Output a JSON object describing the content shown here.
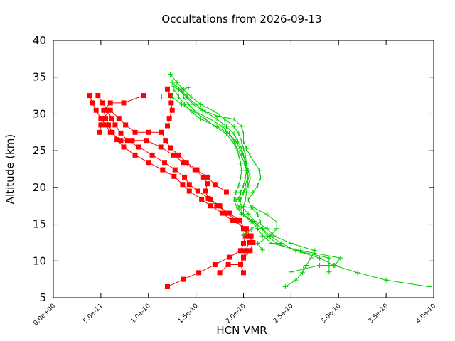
{
  "chart_data": {
    "type": "line",
    "title": "Occultations from 2026-09-13",
    "xlabel": "HCN VMR",
    "ylabel": "Altitude (km)",
    "xlim": [
      0,
      4e-10
    ],
    "ylim": [
      5,
      40
    ],
    "x_ticks": [
      0,
      5e-11,
      1e-10,
      1.5e-10,
      2e-10,
      2.5e-10,
      3e-10,
      3.5e-10,
      4e-10
    ],
    "x_tick_labels": [
      "0.0e+00",
      "5.0e-11",
      "1.0e-10",
      "1.5e-10",
      "2.0e-10",
      "2.5e-10",
      "3.0e-10",
      "3.5e-10",
      "4.0e-10"
    ],
    "y_ticks": [
      5,
      10,
      15,
      20,
      25,
      30,
      35,
      40
    ],
    "y_tick_labels": [
      "5",
      "10",
      "15",
      "20",
      "25",
      "30",
      "35",
      "40"
    ],
    "grid": false,
    "legend": "none",
    "colors": {
      "red_series": "#ff0000",
      "green_series": "#00cc00",
      "axis": "#000000"
    },
    "series": [
      {
        "color": "#ff0000",
        "marker": "square",
        "points": [
          [
            1.2e-10,
            6.5
          ],
          [
            1.37e-10,
            7.5
          ],
          [
            1.53e-10,
            8.4
          ],
          [
            1.7e-10,
            9.5
          ],
          [
            1.85e-10,
            10.5
          ],
          [
            1.97e-10,
            11.4
          ],
          [
            2e-10,
            12.4
          ],
          [
            2.02e-10,
            13.4
          ],
          [
            2.03e-10,
            14.4
          ],
          [
            1.88e-10,
            15.5
          ],
          [
            1.78e-10,
            16.5
          ],
          [
            1.65e-10,
            17.5
          ],
          [
            1.56e-10,
            18.4
          ],
          [
            1.43e-10,
            19.5
          ],
          [
            1.36e-10,
            20.4
          ],
          [
            1.27e-10,
            21.5
          ],
          [
            1.15e-10,
            22.4
          ],
          [
            1e-10,
            23.4
          ],
          [
            8.6e-11,
            24.4
          ],
          [
            7.4e-11,
            25.5
          ],
          [
            6.7e-11,
            26.5
          ],
          [
            6.2e-11,
            27.5
          ],
          [
            5.8e-11,
            28.5
          ],
          [
            5.5e-11,
            29.4
          ],
          [
            5.3e-11,
            30.5
          ],
          [
            6e-11,
            31.5
          ],
          [
            7.4e-11,
            31.5
          ],
          [
            9.5e-11,
            32.5
          ]
        ]
      },
      {
        "color": "#ff0000",
        "marker": "square",
        "points": [
          [
            2e-10,
            8.4
          ],
          [
            1.97e-10,
            9.5
          ],
          [
            2e-10,
            10.4
          ],
          [
            2.02e-10,
            11.4
          ],
          [
            2.06e-10,
            12.5
          ],
          [
            2.08e-10,
            13.4
          ],
          [
            2.01e-10,
            14.4
          ],
          [
            1.96e-10,
            15.5
          ],
          [
            1.85e-10,
            16.5
          ],
          [
            1.72e-10,
            17.5
          ],
          [
            1.63e-10,
            18.5
          ],
          [
            1.6e-10,
            19.5
          ],
          [
            1.62e-10,
            20.5
          ],
          [
            1.58e-10,
            21.4
          ],
          [
            1.49e-10,
            22.4
          ],
          [
            1.37e-10,
            23.4
          ],
          [
            1.26e-10,
            24.4
          ],
          [
            1.13e-10,
            25.5
          ],
          [
            9.8e-11,
            26.4
          ],
          [
            8.3e-11,
            26.4
          ],
          [
            7.1e-11,
            26.4
          ],
          [
            6e-11,
            27.5
          ],
          [
            5.5e-11,
            28.5
          ],
          [
            5e-11,
            29.4
          ],
          [
            4.5e-11,
            30.5
          ],
          [
            4.1e-11,
            31.5
          ],
          [
            3.8e-11,
            32.5
          ]
        ]
      },
      {
        "color": "#ff0000",
        "marker": "square",
        "points": [
          [
            1.75e-10,
            8.4
          ],
          [
            1.84e-10,
            9.5
          ],
          [
            1.97e-10,
            9.5
          ],
          [
            2e-10,
            10.5
          ],
          [
            2.07e-10,
            11.4
          ],
          [
            2.1e-10,
            12.5
          ],
          [
            2.06e-10,
            13.4
          ],
          [
            2e-10,
            14.4
          ],
          [
            1.92e-10,
            15.5
          ],
          [
            1.83e-10,
            16.5
          ],
          [
            1.75e-10,
            17.5
          ],
          [
            1.65e-10,
            18.4
          ],
          [
            1.52e-10,
            19.5
          ],
          [
            1.43e-10,
            20.4
          ],
          [
            1.38e-10,
            21.4
          ],
          [
            1.28e-10,
            22.4
          ],
          [
            1.17e-10,
            23.4
          ],
          [
            1.04e-10,
            24.4
          ],
          [
            9e-11,
            25.5
          ],
          [
            7.8e-11,
            26.4
          ],
          [
            7.1e-11,
            27.4
          ],
          [
            6.5e-11,
            28.5
          ],
          [
            6.1e-11,
            29.4
          ],
          [
            5.7e-11,
            30.5
          ],
          [
            5.2e-11,
            31.5
          ],
          [
            4.7e-11,
            32.5
          ]
        ]
      },
      {
        "color": "#ff0000",
        "marker": "square",
        "points": [
          [
            1.82e-10,
            19.4
          ],
          [
            1.7e-10,
            20.4
          ],
          [
            1.62e-10,
            21.4
          ],
          [
            1.51e-10,
            22.4
          ],
          [
            1.4e-10,
            23.4
          ],
          [
            1.32e-10,
            24.4
          ],
          [
            1.23e-10,
            25.4
          ],
          [
            1.18e-10,
            26.4
          ],
          [
            1.14e-10,
            27.5
          ],
          [
            1e-10,
            27.5
          ],
          [
            8.6e-11,
            27.5
          ],
          [
            7.6e-11,
            28.5
          ],
          [
            6.9e-11,
            29.4
          ],
          [
            6e-11,
            30.5
          ],
          [
            5.2e-11,
            29.4
          ],
          [
            5e-11,
            28.5
          ],
          [
            4.9e-11,
            27.5
          ]
        ]
      },
      {
        "color": "#ff0000",
        "marker": "square",
        "points": [
          [
            1.2e-10,
            28.4
          ],
          [
            1.22e-10,
            29.4
          ],
          [
            1.25e-10,
            30.5
          ],
          [
            1.24e-10,
            31.5
          ],
          [
            1.23e-10,
            32.5
          ],
          [
            1.2e-10,
            33.4
          ]
        ]
      },
      {
        "color": "#00cc00",
        "marker": "plus",
        "points": [
          [
            3.95e-10,
            6.5
          ],
          [
            3.5e-10,
            7.4
          ],
          [
            3.2e-10,
            8.4
          ],
          [
            2.95e-10,
            9.4
          ],
          [
            2.8e-10,
            10.4
          ],
          [
            2.55e-10,
            11.4
          ],
          [
            2.4e-10,
            12.4
          ],
          [
            2.28e-10,
            13.4
          ],
          [
            2.2e-10,
            14.4
          ],
          [
            2.1e-10,
            15.4
          ],
          [
            2e-10,
            16.3
          ],
          [
            2e-10,
            17.4
          ],
          [
            2.02e-10,
            18.3
          ],
          [
            2.03e-10,
            19.3
          ],
          [
            2.04e-10,
            20.3
          ],
          [
            2.05e-10,
            21.3
          ],
          [
            2.04e-10,
            22.3
          ],
          [
            2.03e-10,
            23.3
          ],
          [
            2.02e-10,
            24.3
          ],
          [
            2e-10,
            25.3
          ],
          [
            1.98e-10,
            26.3
          ],
          [
            1.95e-10,
            27.3
          ],
          [
            1.9e-10,
            28.3
          ],
          [
            1.8e-10,
            29.3
          ],
          [
            1.7e-10,
            30.3
          ],
          [
            1.55e-10,
            31.3
          ],
          [
            1.45e-10,
            32.3
          ],
          [
            1.37e-10,
            33.3
          ],
          [
            1.3e-10,
            34.3
          ],
          [
            1.23e-10,
            35.4
          ]
        ]
      },
      {
        "color": "#00cc00",
        "marker": "plus",
        "points": [
          [
            2.44e-10,
            6.5
          ],
          [
            2.55e-10,
            7.4
          ],
          [
            2.62e-10,
            8.4
          ],
          [
            2.66e-10,
            9.4
          ],
          [
            2.71e-10,
            10.4
          ],
          [
            2.75e-10,
            11.4
          ],
          [
            2.5e-10,
            12.4
          ],
          [
            2.32e-10,
            13.4
          ],
          [
            2.25e-10,
            14.4
          ],
          [
            2.12e-10,
            15.4
          ],
          [
            2.05e-10,
            16.4
          ],
          [
            1.98e-10,
            17.4
          ],
          [
            1.95e-10,
            18.4
          ],
          [
            1.97e-10,
            19.3
          ],
          [
            2e-10,
            20.3
          ],
          [
            2.02e-10,
            21.3
          ],
          [
            2.03e-10,
            22.3
          ],
          [
            2.02e-10,
            23.3
          ],
          [
            2e-10,
            24.3
          ],
          [
            1.98e-10,
            25.3
          ],
          [
            1.94e-10,
            26.3
          ],
          [
            1.9e-10,
            27.3
          ],
          [
            1.82e-10,
            28.3
          ],
          [
            1.72e-10,
            29.3
          ],
          [
            1.6e-10,
            30.3
          ],
          [
            1.5e-10,
            31.3
          ],
          [
            1.41e-10,
            32.3
          ],
          [
            1.34e-10,
            33.3
          ],
          [
            1.25e-10,
            34.3
          ]
        ]
      },
      {
        "color": "#00cc00",
        "marker": "plus",
        "points": [
          [
            2.5e-10,
            8.5
          ],
          [
            2.63e-10,
            8.9
          ],
          [
            2.8e-10,
            9.4
          ],
          [
            2.96e-10,
            9.4
          ],
          [
            3.02e-10,
            10.4
          ],
          [
            2.6e-10,
            11.4
          ],
          [
            2.3e-10,
            12.4
          ],
          [
            2.2e-10,
            13.4
          ],
          [
            2.15e-10,
            14.4
          ],
          [
            2.08e-10,
            15.4
          ],
          [
            1.98e-10,
            16.4
          ],
          [
            1.93e-10,
            17.3
          ],
          [
            1.9e-10,
            18.3
          ],
          [
            1.92e-10,
            19.3
          ],
          [
            1.95e-10,
            20.3
          ],
          [
            1.97e-10,
            21.3
          ],
          [
            1.98e-10,
            22.3
          ],
          [
            1.97e-10,
            23.3
          ],
          [
            1.95e-10,
            24.3
          ],
          [
            1.93e-10,
            25.3
          ],
          [
            1.9e-10,
            26.3
          ],
          [
            1.85e-10,
            27.3
          ],
          [
            1.72e-10,
            28.3
          ],
          [
            1.55e-10,
            29.3
          ],
          [
            1.45e-10,
            30.3
          ],
          [
            1.38e-10,
            31.3
          ],
          [
            1.32e-10,
            32.3
          ],
          [
            1.27e-10,
            33.3
          ]
        ]
      },
      {
        "color": "#00cc00",
        "marker": "plus",
        "points": [
          [
            2.9e-10,
            8.5
          ],
          [
            2.9e-10,
            9.4
          ],
          [
            2.9e-10,
            10.4
          ],
          [
            2.55e-10,
            11.4
          ],
          [
            2.35e-10,
            12.4
          ],
          [
            2.25e-10,
            13.4
          ],
          [
            2.2e-10,
            14.4
          ],
          [
            2.1e-10,
            15.3
          ],
          [
            2e-10,
            16.3
          ],
          [
            1.96e-10,
            17.3
          ],
          [
            1.97e-10,
            18.3
          ],
          [
            2e-10,
            19.3
          ],
          [
            2.02e-10,
            20.3
          ],
          [
            2.04e-10,
            21.3
          ],
          [
            2.03e-10,
            22.3
          ],
          [
            2.01e-10,
            23.3
          ],
          [
            1.98e-10,
            24.3
          ],
          [
            1.93e-10,
            25.3
          ],
          [
            1.88e-10,
            26.3
          ],
          [
            1.82e-10,
            27.3
          ],
          [
            1.7e-10,
            28.3
          ],
          [
            1.6e-10,
            29.3
          ],
          [
            1.48e-10,
            30.3
          ],
          [
            1.35e-10,
            31.3
          ],
          [
            1.25e-10,
            32.3
          ],
          [
            1.14e-10,
            32.3
          ]
        ]
      },
      {
        "color": "#00cc00",
        "marker": "plus",
        "points": [
          [
            2.2e-10,
            11.5
          ],
          [
            2.15e-10,
            12.4
          ],
          [
            2.28e-10,
            13.4
          ],
          [
            2.35e-10,
            14.4
          ],
          [
            2.35e-10,
            15.3
          ],
          [
            2.25e-10,
            16.3
          ],
          [
            2.1e-10,
            17.3
          ],
          [
            1.95e-10,
            17.3
          ],
          [
            1.92e-10,
            18.3
          ],
          [
            2e-10,
            19.3
          ],
          [
            2.05e-10,
            20.3
          ],
          [
            2.07e-10,
            21.3
          ],
          [
            2.05e-10,
            22.3
          ],
          [
            2.03e-10,
            23.3
          ],
          [
            2e-10,
            24.3
          ],
          [
            1.96e-10,
            25.3
          ],
          [
            1.92e-10,
            26.3
          ],
          [
            1.85e-10,
            27.3
          ],
          [
            1.78e-10,
            28.3
          ],
          [
            1.65e-10,
            29.3
          ],
          [
            1.5e-10,
            30.3
          ],
          [
            1.42e-10,
            31.3
          ],
          [
            1.37e-10,
            32.3
          ],
          [
            1.35e-10,
            33.3
          ],
          [
            1.42e-10,
            33.6
          ]
        ]
      },
      {
        "color": "#00cc00",
        "marker": "plus",
        "points": [
          [
            2e-10,
            13.5
          ],
          [
            2.08e-10,
            14.3
          ],
          [
            2.18e-10,
            15.3
          ],
          [
            2.15e-10,
            16.3
          ],
          [
            2.08e-10,
            17.3
          ],
          [
            2.05e-10,
            18.3
          ],
          [
            2.1e-10,
            19.3
          ],
          [
            2.15e-10,
            20.3
          ],
          [
            2.18e-10,
            21.3
          ],
          [
            2.17e-10,
            22.3
          ],
          [
            2.12e-10,
            23.3
          ],
          [
            2.07e-10,
            24.3
          ],
          [
            2.03e-10,
            25.3
          ],
          [
            2e-10,
            26.3
          ],
          [
            2e-10,
            27.3
          ],
          [
            1.98e-10,
            28.3
          ],
          [
            1.9e-10,
            29.3
          ],
          [
            1.73e-10,
            29.7
          ],
          [
            1.57e-10,
            30.5
          ],
          [
            1.47e-10,
            31.3
          ],
          [
            1.4e-10,
            32.3
          ],
          [
            1.32e-10,
            33.3
          ],
          [
            1.26e-10,
            33.8
          ]
        ]
      }
    ]
  }
}
